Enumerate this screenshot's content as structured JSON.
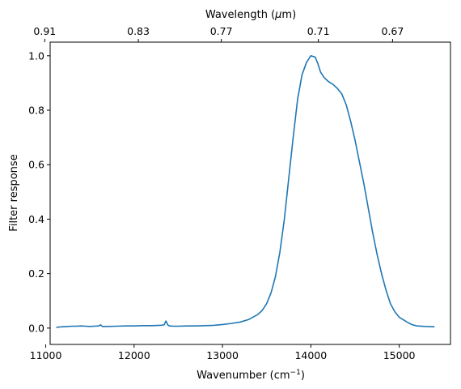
{
  "chart_data": {
    "type": "line",
    "xlabel": "Wavenumber (cm",
    "xlabel_sup": "−1",
    "xlabel_end": ")",
    "ylabel": "Filter response",
    "top_xlabel": "Wavelength (",
    "top_xlabel_mu": "μ",
    "top_xlabel_end": "m)",
    "xlim": [
      11050,
      15580
    ],
    "ylim": [
      -0.06,
      1.05
    ],
    "x_ticks": [
      11000,
      12000,
      13000,
      14000,
      15000
    ],
    "x_tick_labels": [
      "11000",
      "12000",
      "13000",
      "14000",
      "15000"
    ],
    "y_ticks": [
      0.0,
      0.2,
      0.4,
      0.6,
      0.8,
      1.0
    ],
    "y_tick_labels": [
      "0.0",
      "0.2",
      "0.4",
      "0.6",
      "0.8",
      "1.0"
    ],
    "top_ticks": [
      10989,
      12048,
      12987,
      14085,
      14925
    ],
    "top_tick_labels": [
      "0.91",
      "0.83",
      "0.77",
      "0.71",
      "0.67"
    ],
    "grid": false,
    "line_color": "#1f77b4",
    "series": [
      {
        "x": [
          11120,
          11150,
          11200,
          11250,
          11300,
          11350,
          11400,
          11450,
          11500,
          11550,
          11600,
          11620,
          11640,
          11660,
          11700,
          11800,
          11900,
          12000,
          12100,
          12200,
          12300,
          12340,
          12360,
          12370,
          12380,
          12400,
          12450,
          12500,
          12600,
          12700,
          12800,
          12900,
          13000,
          13100,
          13200,
          13300,
          13400,
          13450,
          13500,
          13550,
          13600,
          13650,
          13700,
          13750,
          13800,
          13850,
          13900,
          13950,
          14000,
          14050,
          14080,
          14110,
          14150,
          14200,
          14250,
          14300,
          14350,
          14400,
          14450,
          14500,
          14550,
          14600,
          14650,
          14700,
          14750,
          14800,
          14850,
          14900,
          14950,
          15000,
          15050,
          15100,
          15150,
          15200,
          15300,
          15400
        ],
        "y": [
          0.002,
          0.004,
          0.005,
          0.006,
          0.007,
          0.007,
          0.008,
          0.007,
          0.006,
          0.007,
          0.008,
          0.012,
          0.006,
          0.006,
          0.006,
          0.007,
          0.008,
          0.008,
          0.009,
          0.009,
          0.01,
          0.012,
          0.026,
          0.02,
          0.012,
          0.008,
          0.007,
          0.007,
          0.008,
          0.008,
          0.009,
          0.01,
          0.013,
          0.017,
          0.022,
          0.032,
          0.05,
          0.065,
          0.09,
          0.13,
          0.19,
          0.28,
          0.4,
          0.55,
          0.7,
          0.84,
          0.93,
          0.975,
          1.0,
          0.995,
          0.97,
          0.94,
          0.92,
          0.905,
          0.895,
          0.88,
          0.86,
          0.82,
          0.76,
          0.69,
          0.61,
          0.53,
          0.44,
          0.35,
          0.27,
          0.2,
          0.14,
          0.09,
          0.06,
          0.04,
          0.03,
          0.02,
          0.012,
          0.008,
          0.006,
          0.005
        ]
      }
    ]
  }
}
